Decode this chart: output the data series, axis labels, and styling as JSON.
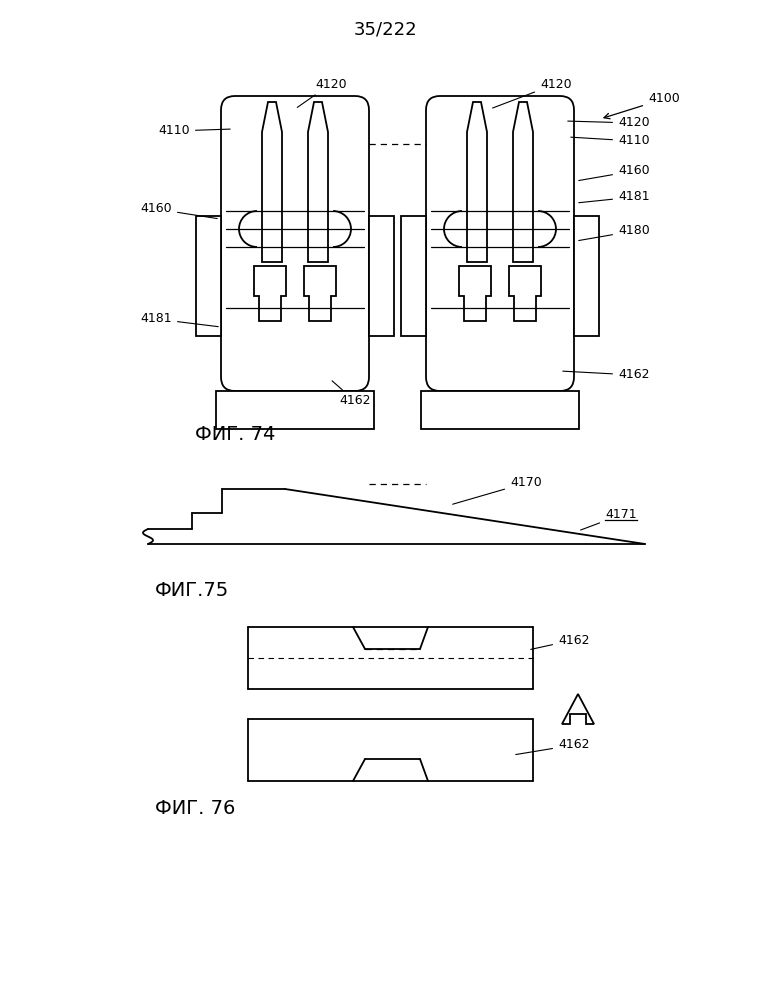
{
  "title": "35/222",
  "title_fontsize": 13,
  "fig74_label": "ФИГ. 74",
  "fig75_label": "ФИГ.75",
  "fig76_label": "ФИГ. 76",
  "label_fontsize": 14,
  "annotation_fontsize": 9,
  "bg_color": "#ffffff",
  "line_color": "#000000",
  "line_width": 1.3
}
